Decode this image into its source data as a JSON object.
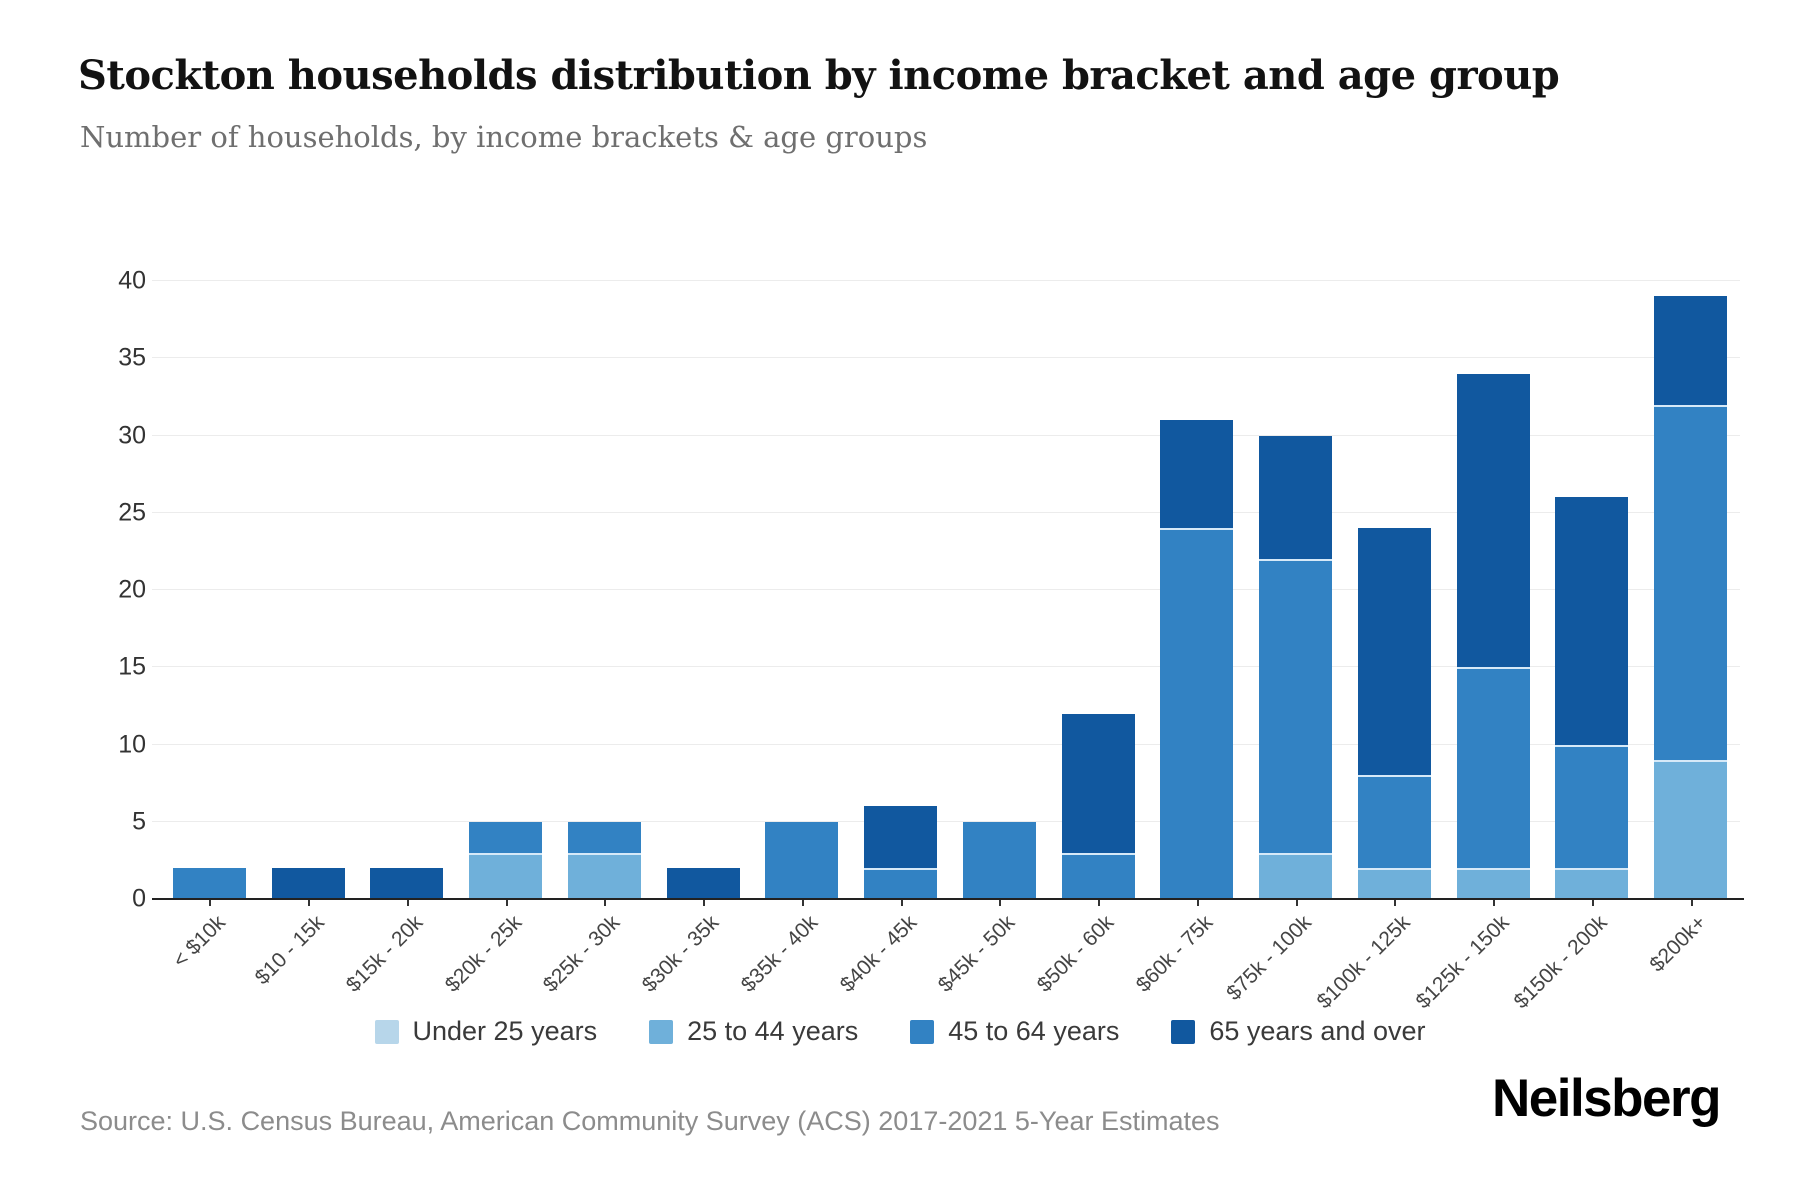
{
  "header": {
    "title": "Stockton households distribution by income bracket and age group",
    "subtitle": "Number of households, by income brackets & age groups"
  },
  "footer": {
    "source": "Source: U.S. Census Bureau, American Community Survey (ACS) 2017-2021 5-Year Estimates",
    "brand": "Neilsberg"
  },
  "chart_data": {
    "type": "bar",
    "stacked": true,
    "title": "Stockton households distribution by income bracket and age group",
    "subtitle": "Number of households, by income brackets & age groups",
    "xlabel": "",
    "ylabel": "",
    "ylim": [
      0,
      40
    ],
    "yticks": [
      0,
      5,
      10,
      15,
      20,
      25,
      30,
      35,
      40
    ],
    "grid": "horizontal",
    "legend_position": "bottom",
    "categories": [
      "< $10k",
      "$10 - 15k",
      "$15k - 20k",
      "$20k - 25k",
      "$25k - 30k",
      "$30k - 35k",
      "$35k - 40k",
      "$40k - 45k",
      "$45k - 50k",
      "$50k - 60k",
      "$60k - 75k",
      "$75k - 100k",
      "$100k - 125k",
      "$125k - 150k",
      "$150k - 200k",
      "$200k+"
    ],
    "series": [
      {
        "name": "Under 25 years",
        "color": "#b7d6ea",
        "values": [
          0,
          0,
          0,
          0,
          0,
          0,
          0,
          0,
          0,
          0,
          0,
          0,
          0,
          0,
          0,
          0
        ]
      },
      {
        "name": "25 to 44 years",
        "color": "#6fb0da",
        "values": [
          0,
          0,
          0,
          3,
          3,
          0,
          0,
          0,
          0,
          0,
          0,
          3,
          2,
          2,
          2,
          9
        ]
      },
      {
        "name": "45 to 64 years",
        "color": "#3282c3",
        "values": [
          2,
          0,
          0,
          2,
          2,
          0,
          5,
          2,
          5,
          3,
          24,
          19,
          6,
          13,
          8,
          23
        ]
      },
      {
        "name": "65 years and over",
        "color": "#11589f",
        "values": [
          0,
          2,
          2,
          0,
          0,
          2,
          0,
          4,
          0,
          9,
          7,
          8,
          16,
          19,
          16,
          7
        ]
      }
    ],
    "totals": [
      2,
      2,
      2,
      5,
      5,
      2,
      5,
      6,
      5,
      12,
      31,
      30,
      24,
      34,
      26,
      39
    ]
  }
}
